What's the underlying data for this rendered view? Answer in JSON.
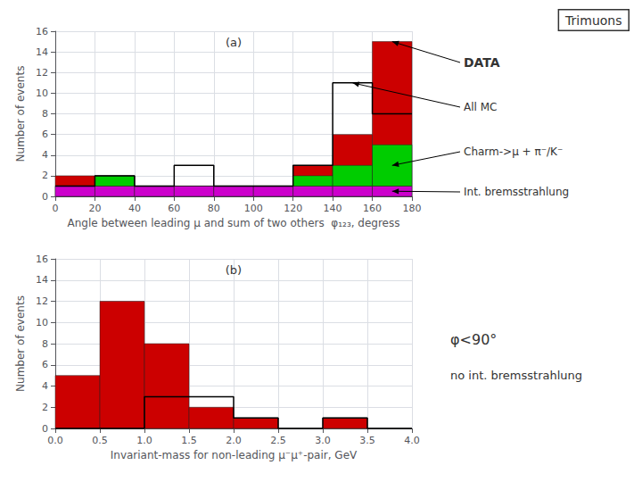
{
  "chart_data": [
    {
      "type": "histogram",
      "title": "(a)",
      "xlabel": "Angle between leading μ and sum of two others  φ₁₂₃, degress",
      "ylabel": "Number of events",
      "xlim": [
        0,
        180
      ],
      "ylim": [
        0,
        16
      ],
      "xticks": [
        0,
        20,
        40,
        60,
        80,
        100,
        120,
        140,
        160,
        180
      ],
      "yticks": [
        0,
        2,
        4,
        6,
        8,
        10,
        12,
        14,
        16
      ],
      "grid": true,
      "bins": [
        0,
        20,
        40,
        60,
        80,
        100,
        120,
        140,
        160,
        180
      ],
      "series": [
        {
          "name": "DATA",
          "type": "bar",
          "color": "#cc0000",
          "values": [
            2,
            2,
            0,
            1,
            1,
            1,
            3,
            6,
            15
          ]
        },
        {
          "name": "Int. bremsstrahlung",
          "type": "stacked_bar",
          "color": "#cc00cc",
          "values": [
            1,
            1,
            1,
            1,
            1,
            1,
            1,
            1,
            1
          ]
        },
        {
          "name": "Charm->μ + π⁻/K⁻",
          "type": "stacked_bar",
          "color": "#00cc00",
          "values": [
            0,
            1,
            0,
            0,
            0,
            0,
            1,
            2,
            4
          ]
        },
        {
          "name": "All MC",
          "type": "step",
          "color": "#000000",
          "values": [
            1,
            2,
            1,
            3,
            1,
            1,
            3,
            11,
            8
          ]
        }
      ],
      "annotations": [
        "Trimuons"
      ]
    },
    {
      "type": "histogram",
      "title": "(b)",
      "xlabel": "Invariant-mass for non-leading μ⁻μ⁺-pair, GeV",
      "ylabel": "Number of events",
      "xlim": [
        0,
        4
      ],
      "ylim": [
        0,
        16
      ],
      "xticks": [
        {
          "value": 0,
          "label": "0.0"
        },
        0.5,
        {
          "value": 1,
          "label": "1.0"
        },
        1.5,
        {
          "value": 2,
          "label": "2.0"
        },
        2.5,
        {
          "value": 3,
          "label": "3.0"
        },
        3.5,
        {
          "value": 4,
          "label": "4.0"
        }
      ],
      "yticks": [
        0,
        2,
        4,
        6,
        8,
        10,
        12,
        14,
        16
      ],
      "grid": true,
      "bins": [
        0,
        0.5,
        1.0,
        1.5,
        2.0,
        2.5,
        3.0,
        3.5,
        4.0
      ],
      "series": [
        {
          "type": "bar",
          "color": "#cc0000",
          "values": [
            5,
            12,
            8,
            2,
            1,
            0,
            1,
            0
          ]
        },
        {
          "type": "step",
          "color": "#000000",
          "values": [
            0,
            0,
            3,
            3,
            1,
            0,
            1,
            0
          ]
        }
      ],
      "annotations": [
        "φ<90°",
        "no int. bremsstrahlung"
      ]
    }
  ]
}
